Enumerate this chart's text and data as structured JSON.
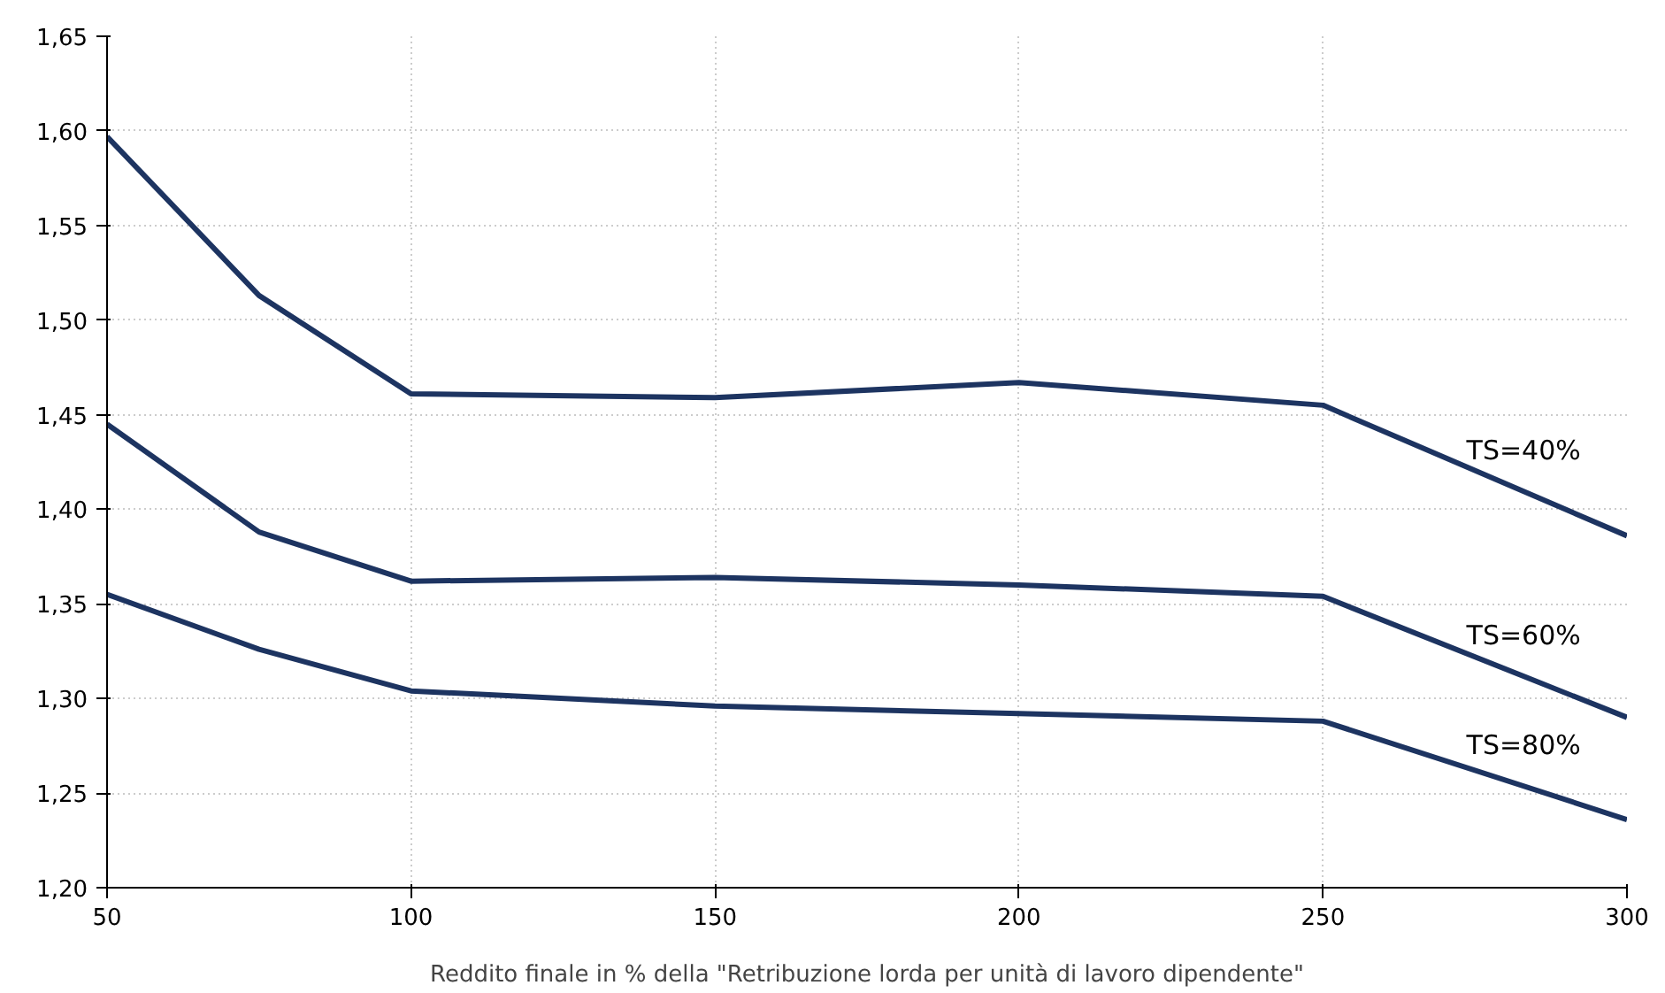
{
  "chart_data": {
    "type": "line",
    "xlabel": "Reddito finale in % della \"Retribuzione lorda per unità di lavoro dipendente\"",
    "x": [
      50,
      75,
      100,
      150,
      200,
      250,
      300
    ],
    "series": [
      {
        "name": "TS=40%",
        "color": "#1d3461",
        "values": [
          1.597,
          1.513,
          1.461,
          1.459,
          1.467,
          1.455,
          1.386
        ]
      },
      {
        "name": "TS=60%",
        "color": "#1d3461",
        "values": [
          1.445,
          1.388,
          1.362,
          1.364,
          1.36,
          1.354,
          1.29
        ]
      },
      {
        "name": "TS=80%",
        "color": "#1d3461",
        "values": [
          1.355,
          1.326,
          1.304,
          1.296,
          1.292,
          1.288,
          1.236
        ]
      }
    ],
    "xlim": [
      50,
      300
    ],
    "xticks": [
      50,
      100,
      150,
      200,
      250,
      300
    ],
    "ylim": [
      1.2,
      1.65
    ],
    "yticks": [
      {
        "value": 1.2,
        "label": "1,20"
      },
      {
        "value": 1.25,
        "label": "1,25"
      },
      {
        "value": 1.3,
        "label": "1,30"
      },
      {
        "value": 1.35,
        "label": "1,35"
      },
      {
        "value": 1.4,
        "label": "1,40"
      },
      {
        "value": 1.45,
        "label": "1,45"
      },
      {
        "value": 1.5,
        "label": "1,50"
      },
      {
        "value": 1.55,
        "label": "1,55"
      },
      {
        "value": 1.6,
        "label": "1,60"
      },
      {
        "value": 1.65,
        "label": "1,65"
      }
    ],
    "grid": true,
    "legend": false,
    "marker": "none",
    "line_style": "solid"
  }
}
